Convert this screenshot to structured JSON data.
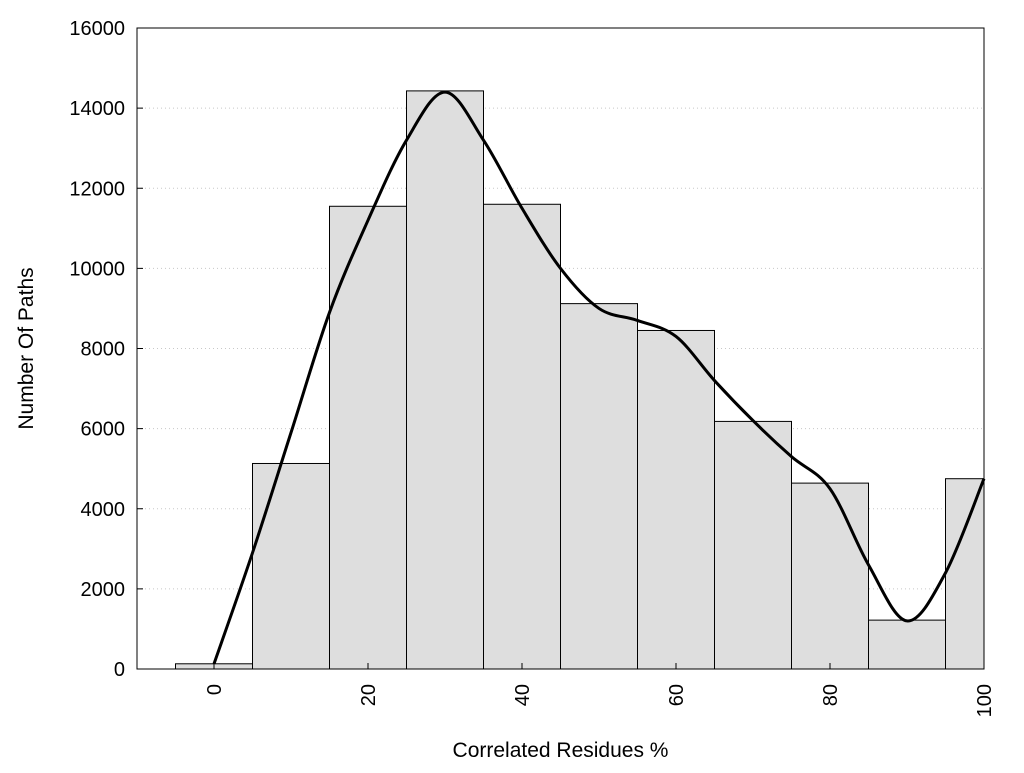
{
  "chart_data": {
    "type": "bar",
    "title": "",
    "xlabel": "Correlated Residues %",
    "ylabel": "Number Of Paths",
    "bins": [
      {
        "center": 0,
        "value": 130
      },
      {
        "center": 10,
        "value": 5130
      },
      {
        "center": 20,
        "value": 11550
      },
      {
        "center": 30,
        "value": 14430
      },
      {
        "center": 40,
        "value": 11600
      },
      {
        "center": 50,
        "value": 9120
      },
      {
        "center": 60,
        "value": 8450
      },
      {
        "center": 70,
        "value": 6180
      },
      {
        "center": 80,
        "value": 4640
      },
      {
        "center": 90,
        "value": 1220
      },
      {
        "center": 100,
        "value": 4750
      }
    ],
    "bin_width": 10,
    "xlim": [
      -10,
      100
    ],
    "ylim": [
      0,
      16000
    ],
    "x_ticks": [
      0,
      20,
      40,
      60,
      80,
      100
    ],
    "y_ticks": [
      0,
      2000,
      4000,
      6000,
      8000,
      10000,
      12000,
      14000,
      16000
    ],
    "y_tick_labels": [
      "0",
      "2000",
      "4000",
      "6000",
      "8000",
      "10000",
      "12000",
      "14000",
      "16000"
    ],
    "x_tick_labels": [
      "0",
      "20",
      "40",
      "60",
      "80",
      "100"
    ],
    "density_curve": {
      "x": [
        0,
        5,
        10,
        15,
        20,
        25,
        30,
        35,
        40,
        45,
        50,
        55,
        60,
        65,
        70,
        75,
        80,
        85,
        90,
        95,
        100
      ],
      "y": [
        130,
        2900,
        5900,
        8900,
        11200,
        13200,
        14400,
        13200,
        11500,
        10000,
        9000,
        8700,
        8300,
        7200,
        6200,
        5300,
        4500,
        2600,
        1200,
        2400,
        4750
      ]
    },
    "grid": "y-dotted",
    "bar_fill": "#dedede",
    "bar_stroke": "#000000",
    "curve_color": "#000000"
  }
}
